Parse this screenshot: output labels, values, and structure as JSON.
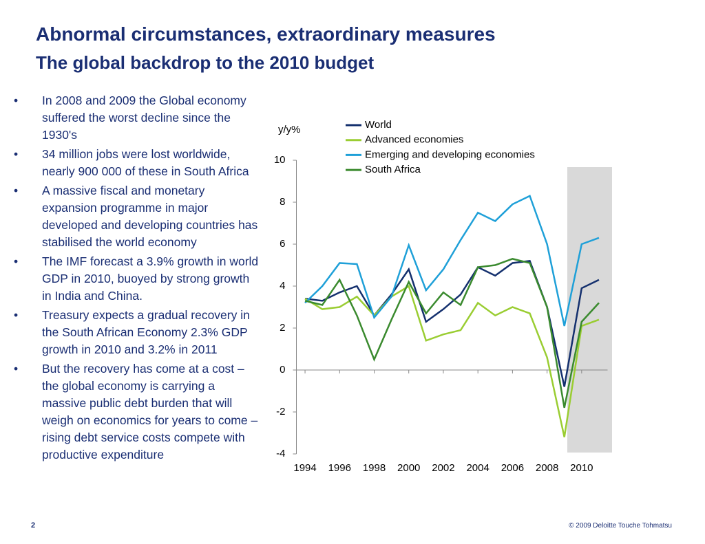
{
  "header": {
    "title": "Abnormal circumstances, extraordinary measures",
    "subtitle": "The global backdrop to the 2010 budget"
  },
  "bullets": [
    "In 2008 and 2009 the Global economy suffered the worst decline since the 1930's",
    "34 million jobs were lost worldwide, nearly 900 000 of these in South Africa",
    "A massive fiscal and monetary expansion programme in major developed and developing countries has stabilised the world economy",
    "The IMF forecast a 3.9% growth in world GDP in 2010, buoyed by strong growth in India and China.",
    "Treasury expects a gradual recovery in the South African Economy  2.3% GDP growth in 2010 and 3.2% in 2011",
    "But the recovery has come at a cost – the global economy is carrying a massive public debt burden that will weigh on economics for years to come – rising debt service costs compete with productive expenditure"
  ],
  "footer": {
    "page": "2",
    "copyright": "© 2009 Deloitte Touche Tohmatsu"
  },
  "chart_data": {
    "type": "line",
    "ylabel": "y/y%",
    "x": [
      1994,
      1995,
      1996,
      1997,
      1998,
      1999,
      2000,
      2001,
      2002,
      2003,
      2004,
      2005,
      2006,
      2007,
      2008,
      2009,
      2010,
      2011
    ],
    "xlim": [
      1993.5,
      2011.5
    ],
    "xticks": [
      1994,
      1996,
      1998,
      2000,
      2002,
      2004,
      2006,
      2008,
      2010
    ],
    "ylim": [
      -4,
      10
    ],
    "yticks": [
      -4,
      -2,
      0,
      2,
      4,
      6,
      8,
      10
    ],
    "series": [
      {
        "name": "World",
        "color": "#14306e",
        "values": [
          3.4,
          3.3,
          3.7,
          4.0,
          2.6,
          3.6,
          4.8,
          2.3,
          2.9,
          3.6,
          4.9,
          4.5,
          5.1,
          5.2,
          3.0,
          -0.8,
          3.9,
          4.3
        ]
      },
      {
        "name": "Advanced economies",
        "color": "#9acd32",
        "values": [
          3.4,
          2.9,
          3.0,
          3.5,
          2.6,
          3.5,
          4.0,
          1.4,
          1.7,
          1.9,
          3.2,
          2.6,
          3.0,
          2.7,
          0.6,
          -3.2,
          2.1,
          2.4
        ]
      },
      {
        "name": "Emerging and developing economies",
        "color": "#1fa0d8",
        "values": [
          3.2,
          4.0,
          5.1,
          5.05,
          2.5,
          3.5,
          5.95,
          3.8,
          4.8,
          6.2,
          7.5,
          7.1,
          7.9,
          8.3,
          6.0,
          2.1,
          6.0,
          6.3
        ]
      },
      {
        "name": "South Africa",
        "color": "#3a8a2e",
        "values": [
          3.3,
          3.1,
          4.3,
          2.6,
          0.5,
          2.4,
          4.2,
          2.7,
          3.7,
          3.1,
          4.9,
          5.0,
          5.3,
          5.1,
          3.0,
          -1.8,
          2.3,
          3.2
        ]
      }
    ]
  }
}
